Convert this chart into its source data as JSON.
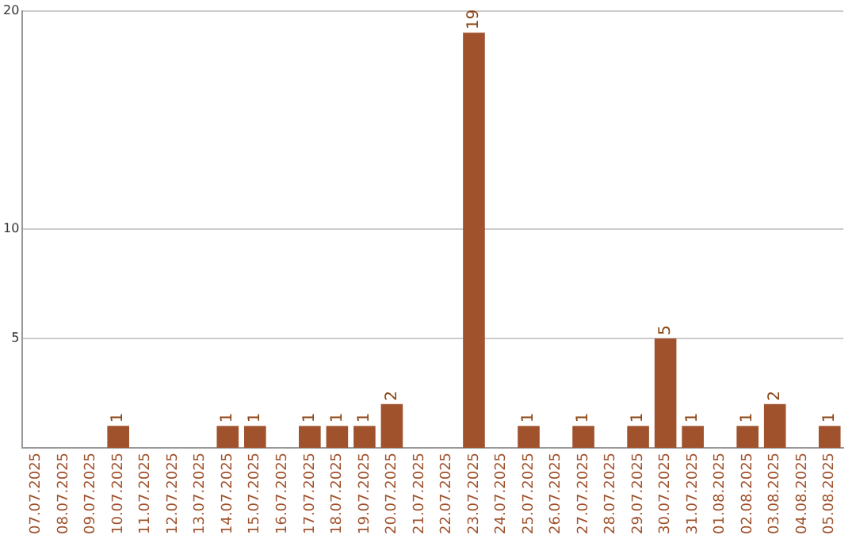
{
  "chart_data": {
    "type": "bar",
    "categories": [
      "07.07.2025",
      "08.07.2025",
      "09.07.2025",
      "10.07.2025",
      "11.07.2025",
      "12.07.2025",
      "13.07.2025",
      "14.07.2025",
      "15.07.2025",
      "16.07.2025",
      "17.07.2025",
      "18.07.2025",
      "19.07.2025",
      "20.07.2025",
      "21.07.2025",
      "22.07.2025",
      "23.07.2025",
      "24.07.2025",
      "25.07.2025",
      "26.07.2025",
      "27.07.2025",
      "28.07.2025",
      "29.07.2025",
      "30.07.2025",
      "31.07.2025",
      "01.08.2025",
      "02.08.2025",
      "03.08.2025",
      "04.08.2025",
      "05.08.2025"
    ],
    "values": [
      0,
      0,
      0,
      1,
      0,
      0,
      0,
      1,
      1,
      0,
      1,
      1,
      1,
      2,
      0,
      0,
      19,
      0,
      1,
      0,
      1,
      0,
      1,
      5,
      1,
      0,
      1,
      2,
      0,
      1
    ],
    "value_labels": [
      null,
      null,
      null,
      "1",
      null,
      null,
      null,
      "1",
      "1",
      null,
      "1",
      "1",
      "1",
      "2",
      null,
      null,
      "19",
      null,
      "1",
      null,
      "1",
      null,
      "1",
      "5",
      "1",
      null,
      "1",
      "2",
      null,
      "1"
    ],
    "color": "#a0522d",
    "ylim": [
      0,
      20
    ],
    "yticks": [
      5,
      10,
      20
    ],
    "grid": "y",
    "legend": false
  }
}
